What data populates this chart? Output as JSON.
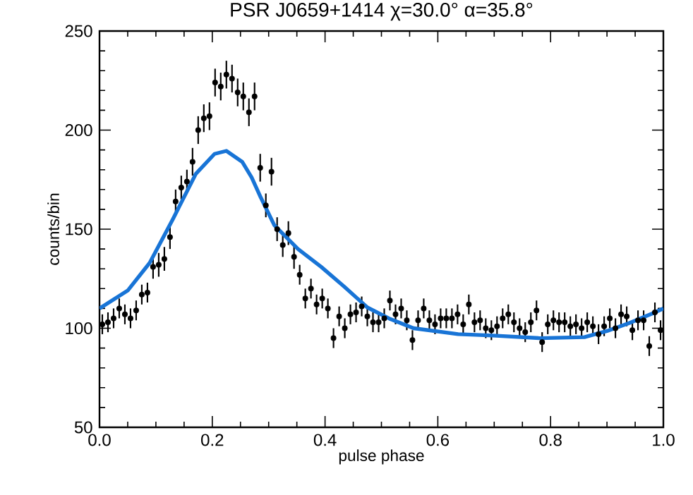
{
  "chart_data": {
    "type": "scatter",
    "title": "PSR J0659+1414   χ=30.0° α=35.8°",
    "xlabel": "pulse phase",
    "ylabel": "counts/bin",
    "xlim": [
      0,
      1
    ],
    "ylim": [
      50,
      250
    ],
    "xticks": [
      {
        "value": 0,
        "label": "0.0"
      },
      {
        "value": 0.2,
        "label": "0.2"
      },
      {
        "value": 0.4,
        "label": "0.4"
      },
      {
        "value": 0.6,
        "label": "0.6"
      },
      {
        "value": 0.8,
        "label": "0.8"
      },
      {
        "value": 1,
        "label": "1.0"
      }
    ],
    "yticks": [
      50,
      100,
      150,
      200,
      250
    ],
    "x": [
      0.005,
      0.015,
      0.025,
      0.035,
      0.045,
      0.055,
      0.065,
      0.075,
      0.085,
      0.095,
      0.105,
      0.115,
      0.125,
      0.135,
      0.145,
      0.155,
      0.165,
      0.175,
      0.185,
      0.195,
      0.205,
      0.215,
      0.225,
      0.235,
      0.245,
      0.255,
      0.265,
      0.275,
      0.285,
      0.295,
      0.305,
      0.315,
      0.325,
      0.335,
      0.345,
      0.355,
      0.365,
      0.375,
      0.385,
      0.395,
      0.405,
      0.415,
      0.425,
      0.435,
      0.445,
      0.455,
      0.465,
      0.475,
      0.485,
      0.495,
      0.505,
      0.515,
      0.525,
      0.535,
      0.545,
      0.555,
      0.565,
      0.575,
      0.585,
      0.595,
      0.605,
      0.615,
      0.625,
      0.635,
      0.645,
      0.655,
      0.665,
      0.675,
      0.685,
      0.695,
      0.705,
      0.715,
      0.725,
      0.735,
      0.745,
      0.755,
      0.765,
      0.775,
      0.785,
      0.795,
      0.805,
      0.815,
      0.825,
      0.835,
      0.845,
      0.855,
      0.865,
      0.875,
      0.885,
      0.895,
      0.905,
      0.915,
      0.925,
      0.935,
      0.945,
      0.955,
      0.965,
      0.975,
      0.985,
      0.995
    ],
    "series": [
      {
        "color": "#000000",
        "marker": "circle",
        "values": [
          102,
          103,
          105,
          110,
          107,
          105,
          109,
          117,
          118,
          131,
          132,
          135,
          146,
          164,
          171,
          174,
          184,
          200,
          206,
          207,
          224,
          222,
          228,
          226,
          219,
          217,
          209,
          217,
          181,
          162,
          179,
          150,
          142,
          148,
          136,
          127,
          115,
          120,
          112,
          115,
          110,
          95,
          106,
          100,
          107,
          108,
          111,
          106,
          103,
          103,
          105,
          114,
          107,
          110,
          104,
          94,
          104,
          110,
          104,
          102,
          105,
          105,
          105,
          107,
          102,
          112,
          103,
          104,
          100,
          99,
          101,
          105,
          107,
          103,
          100,
          98,
          103,
          109,
          93,
          102,
          104,
          103,
          103,
          101,
          102,
          100,
          103,
          101,
          97,
          101,
          105,
          100,
          107,
          106,
          99,
          104,
          104,
          91,
          108,
          99
        ],
        "errors": [
          5,
          5,
          5,
          5,
          5,
          5,
          5,
          5,
          5,
          6,
          6,
          6,
          6,
          6,
          6,
          6,
          7,
          7,
          7,
          7,
          7,
          7,
          7,
          7,
          7,
          7,
          7,
          7,
          7,
          6,
          7,
          6,
          6,
          6,
          6,
          5,
          5,
          5,
          5,
          5,
          5,
          5,
          5,
          5,
          5,
          5,
          5,
          5,
          5,
          5,
          5,
          5,
          5,
          5,
          5,
          5,
          5,
          5,
          5,
          5,
          5,
          5,
          5,
          5,
          5,
          5,
          5,
          5,
          5,
          5,
          5,
          5,
          5,
          5,
          5,
          5,
          5,
          5,
          5,
          5,
          5,
          5,
          5,
          5,
          5,
          5,
          5,
          5,
          5,
          5,
          5,
          5,
          5,
          5,
          5,
          5,
          5,
          5,
          5,
          5
        ]
      },
      {
        "type": "line",
        "color": "#1874d6",
        "marker": "none",
        "x": [
          0,
          0.05,
          0.089,
          0.13,
          0.171,
          0.204,
          0.225,
          0.253,
          0.27,
          0.286,
          0.31,
          0.352,
          0.393,
          0.434,
          0.475,
          0.516,
          0.557,
          0.636,
          0.698,
          0.78,
          0.86,
          0.9,
          0.94,
          0.98,
          1.0
        ],
        "values": [
          110,
          119,
          133,
          155,
          178,
          188,
          189.5,
          184,
          176,
          166,
          152,
          140,
          131,
          121,
          110.5,
          104.6,
          100,
          97,
          96.3,
          95,
          95.5,
          98.6,
          102.7,
          107.4,
          110
        ]
      }
    ]
  }
}
